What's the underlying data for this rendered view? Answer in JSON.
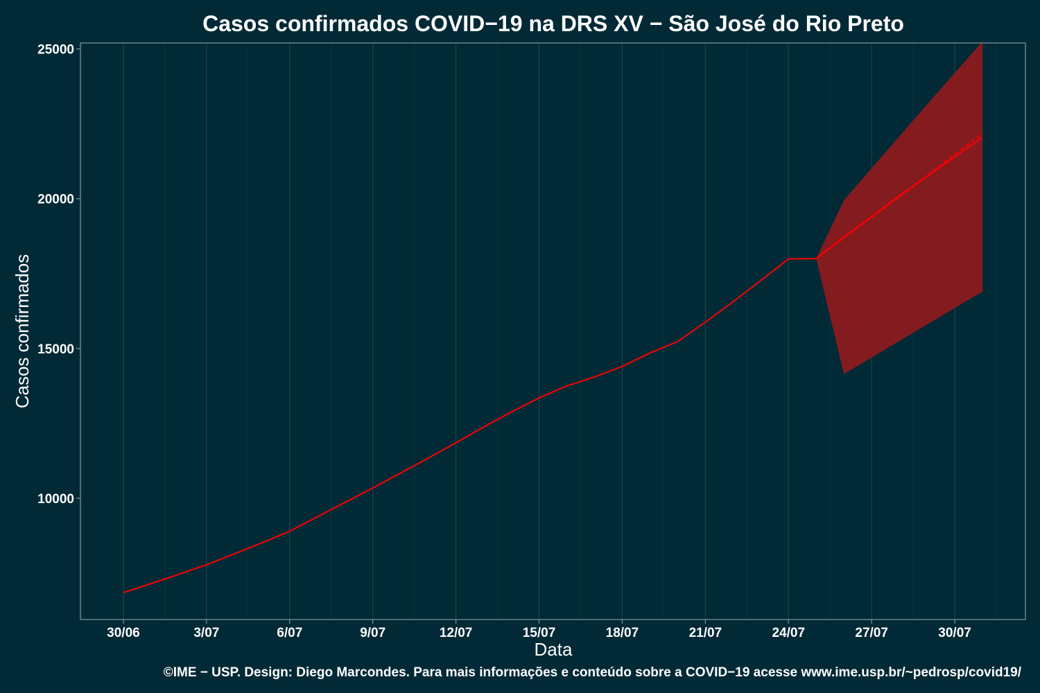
{
  "chart_data": {
    "type": "line",
    "title": "Casos confirmados COVID−19 na DRS XV − São José do Rio Preto",
    "xlabel": "Data",
    "ylabel": "Casos confirmados",
    "caption": "©IME − USP. Design: Diego Marcondes. Para mais informações e conteúdo sobre a COVID−19 acesse www.ime.usp.br/~pedrosp/covid19/",
    "x_ticks": [
      {
        "day": 0,
        "label": "30/06"
      },
      {
        "day": 3,
        "label": "3/07"
      },
      {
        "day": 6,
        "label": "6/07"
      },
      {
        "day": 9,
        "label": "9/07"
      },
      {
        "day": 12,
        "label": "12/07"
      },
      {
        "day": 15,
        "label": "15/07"
      },
      {
        "day": 18,
        "label": "18/07"
      },
      {
        "day": 21,
        "label": "21/07"
      },
      {
        "day": 24,
        "label": "24/07"
      },
      {
        "day": 27,
        "label": "27/07"
      },
      {
        "day": 30,
        "label": "30/07"
      }
    ],
    "y_ticks": [
      10000,
      15000,
      20000,
      25000
    ],
    "xlim": [
      -1.55,
      32.55
    ],
    "ylim": [
      5950,
      25200
    ],
    "grid": true,
    "colors": {
      "background": "#022a36",
      "line": "#ff0000",
      "band": "#8b1a1f",
      "grid": "#1d4650",
      "axis": "#7f9aa0",
      "text": "#ffffff"
    },
    "observed": {
      "x": [
        "30/06",
        "1/07",
        "2/07",
        "3/07",
        "4/07",
        "5/07",
        "6/07",
        "7/07",
        "8/07",
        "9/07",
        "10/07",
        "11/07",
        "12/07",
        "13/07",
        "14/07",
        "15/07",
        "16/07",
        "17/07",
        "18/07",
        "19/07",
        "20/07",
        "21/07",
        "22/07",
        "23/07",
        "24/07",
        "25/07"
      ],
      "values": [
        6850,
        7150,
        7460,
        7780,
        8140,
        8510,
        8900,
        9380,
        9860,
        10340,
        10840,
        11340,
        11850,
        12380,
        12880,
        13350,
        13750,
        14050,
        14400,
        14850,
        15230,
        15880,
        16560,
        17270,
        17990,
        18000
      ]
    },
    "forecast": {
      "x": [
        "25/07",
        "26/07",
        "27/07",
        "28/07",
        "29/07",
        "30/07",
        "31/07"
      ],
      "mean": [
        18000,
        18720,
        19400,
        20100,
        20750,
        21400,
        22050
      ],
      "mean_dashed": [
        18000,
        18700,
        19380,
        20060,
        20760,
        21480,
        22180
      ],
      "upper": [
        18000,
        19950,
        21020,
        22080,
        23150,
        24200,
        25250
      ],
      "lower": [
        18000,
        14150,
        14700,
        15250,
        15800,
        16350,
        16900
      ]
    }
  }
}
